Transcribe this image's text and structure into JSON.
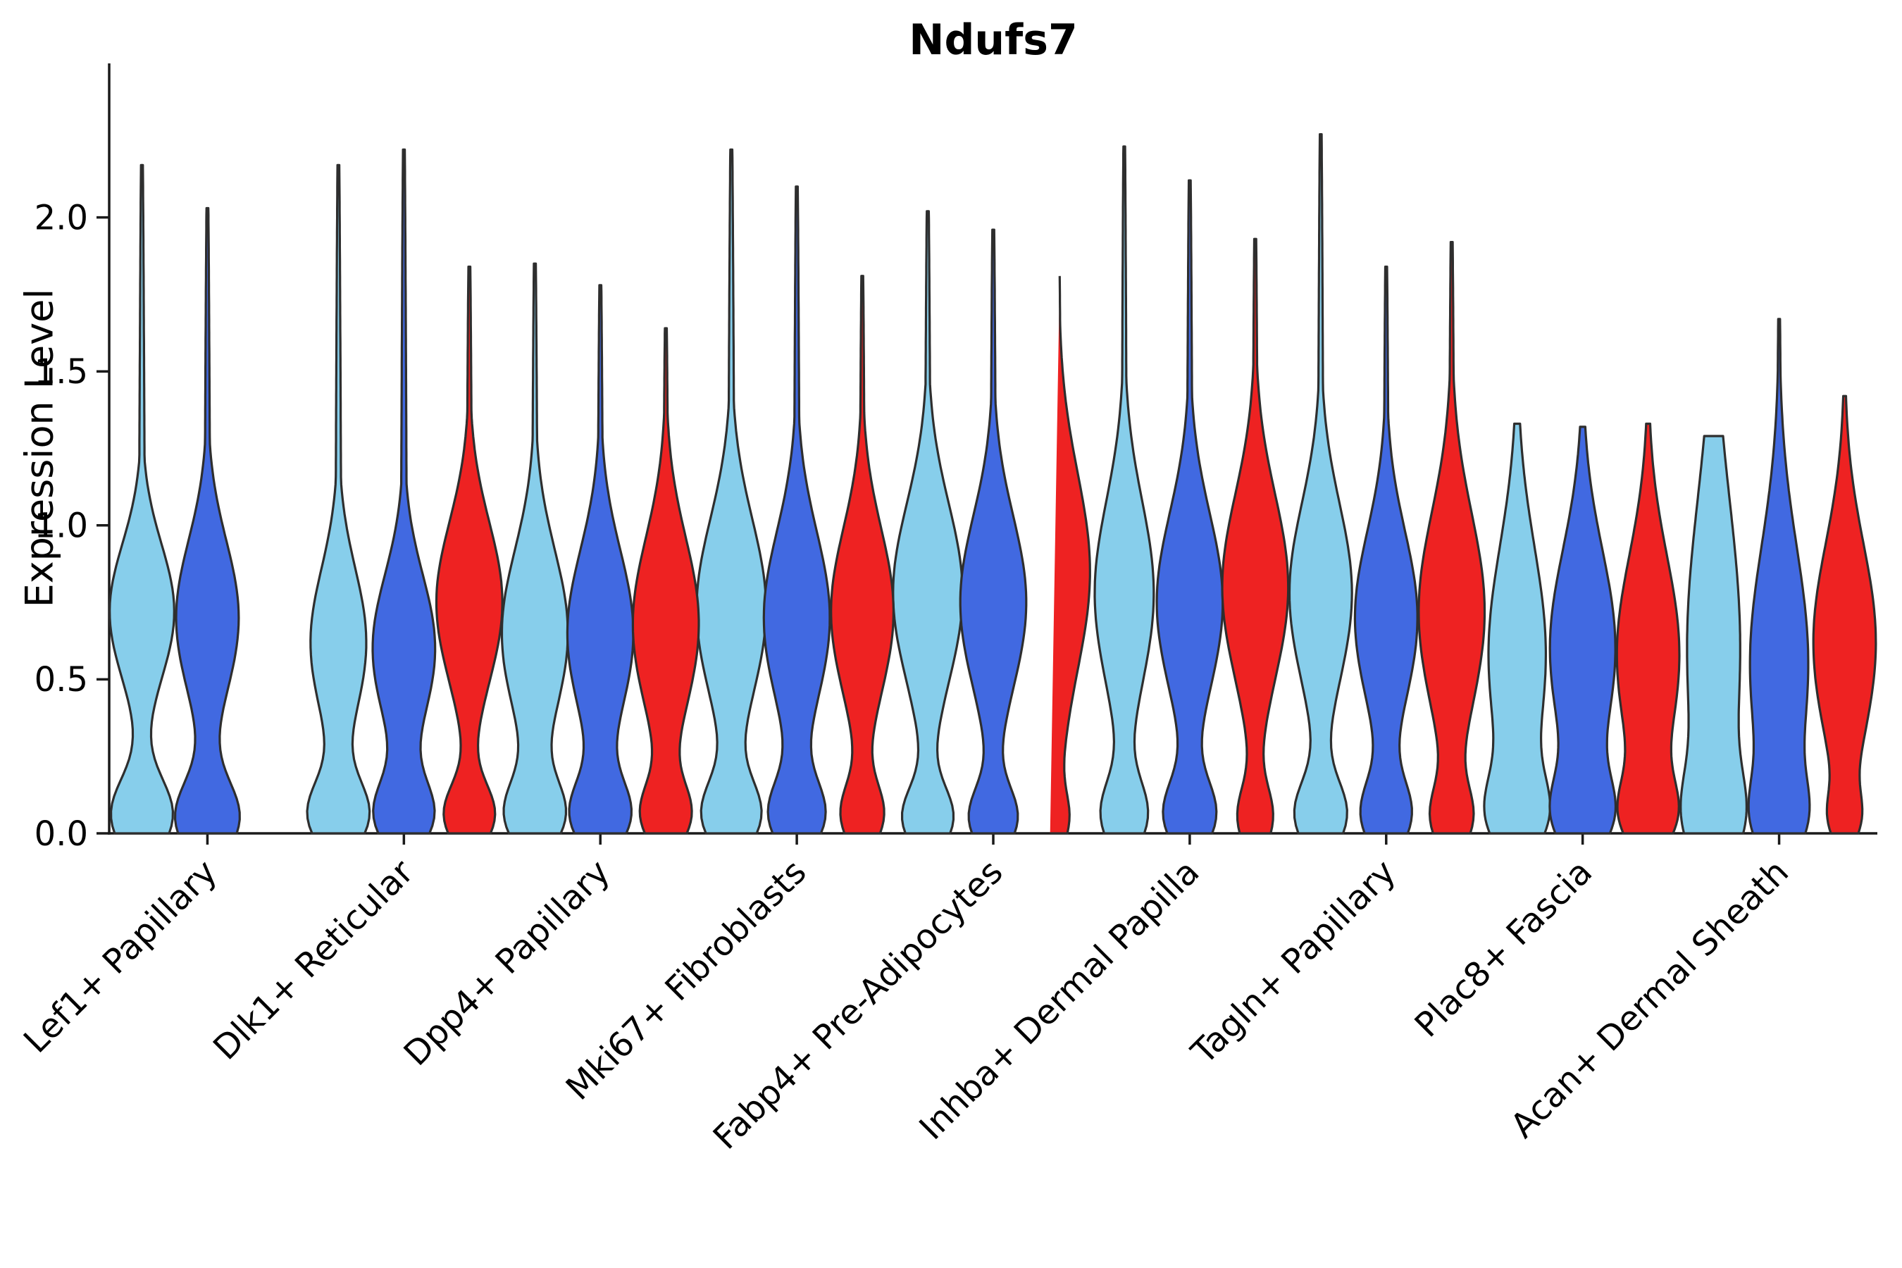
{
  "chart_data": {
    "type": "violin",
    "title": "Ndufs7",
    "ylabel": "Expression Level",
    "yticks": [
      0.0,
      0.5,
      1.0,
      1.5,
      2.0
    ],
    "ylim": [
      0,
      2.5
    ],
    "grid": false,
    "legend": "none",
    "axis_color": "#1a1a1a",
    "outline_color": "#2e2e2e",
    "categories": [
      "Lef1+ Papillary",
      "Dlk1+ Reticular",
      "Dpp4+ Papillary",
      "Mki67+ Fibroblasts",
      "Fabp4+ Pre-Adipocytes",
      "Inhba+ Dermal Papilla",
      "Tagln+ Papillary",
      "Plac8+ Fascia",
      "Acan+ Dermal Sheath"
    ],
    "series": [
      {
        "key": "skyblue",
        "color": "#87CEEB",
        "violins": [
          {
            "max": 2.17,
            "modes": [
              [
                0.06,
                0.12,
                0.95
              ],
              [
                0.72,
                0.22,
                1.0
              ]
            ],
            "width": 0.93
          },
          {
            "max": 2.17,
            "modes": [
              [
                0.06,
                0.11,
                1.0
              ],
              [
                0.62,
                0.24,
                0.95
              ]
            ],
            "width": 0.9
          },
          {
            "max": 1.85,
            "modes": [
              [
                0.06,
                0.11,
                0.85
              ],
              [
                0.65,
                0.27,
                1.0
              ]
            ],
            "width": 0.95
          },
          {
            "max": 2.22,
            "modes": [
              [
                0.06,
                0.11,
                0.8
              ],
              [
                0.73,
                0.29,
                1.0
              ]
            ],
            "width": 1.0
          },
          {
            "max": 2.02,
            "modes": [
              [
                0.05,
                0.1,
                0.7
              ],
              [
                0.78,
                0.29,
                1.0
              ]
            ],
            "width": 1.0
          },
          {
            "max": 2.23,
            "modes": [
              [
                0.06,
                0.11,
                0.75
              ],
              [
                0.78,
                0.3,
                1.0
              ]
            ],
            "width": 0.85
          },
          {
            "max": 2.27,
            "modes": [
              [
                0.06,
                0.11,
                0.8
              ],
              [
                0.78,
                0.29,
                1.0
              ]
            ],
            "width": 0.9
          },
          {
            "max": 1.33,
            "modes": [
              [
                0.06,
                0.12,
                0.8
              ],
              [
                0.58,
                0.35,
                1.0
              ]
            ],
            "width": 0.95
          },
          {
            "max": 1.29,
            "modes": [
              [
                0.05,
                0.14,
                0.7
              ],
              [
                0.6,
                0.48,
                1.0
              ]
            ],
            "width": 0.95
          }
        ]
      },
      {
        "key": "royalblue",
        "color": "#4169E1",
        "violins": [
          {
            "max": 2.03,
            "modes": [
              [
                0.05,
                0.12,
                1.0
              ],
              [
                0.7,
                0.25,
                1.0
              ]
            ],
            "width": 0.93
          },
          {
            "max": 2.22,
            "modes": [
              [
                0.06,
                0.11,
                0.9
              ],
              [
                0.6,
                0.24,
                1.0
              ]
            ],
            "width": 0.9
          },
          {
            "max": 1.78,
            "modes": [
              [
                0.06,
                0.11,
                0.85
              ],
              [
                0.65,
                0.27,
                1.0
              ]
            ],
            "width": 0.95
          },
          {
            "max": 2.1,
            "modes": [
              [
                0.06,
                0.11,
                0.8
              ],
              [
                0.7,
                0.28,
                1.0
              ]
            ],
            "width": 0.95
          },
          {
            "max": 1.96,
            "modes": [
              [
                0.05,
                0.1,
                0.7
              ],
              [
                0.75,
                0.28,
                1.0
              ]
            ],
            "width": 0.95
          },
          {
            "max": 2.12,
            "modes": [
              [
                0.06,
                0.11,
                0.75
              ],
              [
                0.75,
                0.29,
                1.0
              ]
            ],
            "width": 0.95
          },
          {
            "max": 1.84,
            "modes": [
              [
                0.06,
                0.11,
                0.75
              ],
              [
                0.7,
                0.28,
                1.0
              ]
            ],
            "width": 0.9
          },
          {
            "max": 1.32,
            "modes": [
              [
                0.06,
                0.12,
                0.75
              ],
              [
                0.6,
                0.32,
                1.0
              ]
            ],
            "width": 0.95
          },
          {
            "max": 1.67,
            "modes": [
              [
                0.05,
                0.12,
                0.6
              ],
              [
                0.55,
                0.38,
                1.0
              ]
            ],
            "width": 0.88
          }
        ]
      },
      {
        "key": "red",
        "color": "#EE2222",
        "violins": [
          null,
          {
            "max": 1.84,
            "modes": [
              [
                0.06,
                0.1,
                0.75
              ],
              [
                0.75,
                0.26,
                1.0
              ]
            ],
            "width": 0.95
          },
          {
            "max": 1.64,
            "modes": [
              [
                0.06,
                0.1,
                0.7
              ],
              [
                0.68,
                0.28,
                1.0
              ]
            ],
            "width": 0.95
          },
          {
            "max": 1.81,
            "modes": [
              [
                0.06,
                0.1,
                0.65
              ],
              [
                0.72,
                0.27,
                1.0
              ]
            ],
            "width": 0.9
          },
          {
            "max": 1.83,
            "modes": [
              [
                0.05,
                0.08,
                0.3
              ],
              [
                0.85,
                0.32,
                1.0
              ]
            ],
            "width": 0.9
          },
          {
            "max": 1.93,
            "modes": [
              [
                0.05,
                0.1,
                0.5
              ],
              [
                0.8,
                0.3,
                1.0
              ]
            ],
            "width": 0.95
          },
          {
            "max": 1.92,
            "modes": [
              [
                0.05,
                0.1,
                0.55
              ],
              [
                0.72,
                0.32,
                1.0
              ]
            ],
            "width": 0.95
          },
          {
            "max": 1.33,
            "modes": [
              [
                0.06,
                0.11,
                0.7
              ],
              [
                0.58,
                0.32,
                1.0
              ]
            ],
            "width": 0.9
          },
          {
            "max": 1.42,
            "modes": [
              [
                0.05,
                0.08,
                0.35
              ],
              [
                0.62,
                0.32,
                1.0
              ]
            ],
            "width": 0.9
          }
        ]
      }
    ]
  }
}
